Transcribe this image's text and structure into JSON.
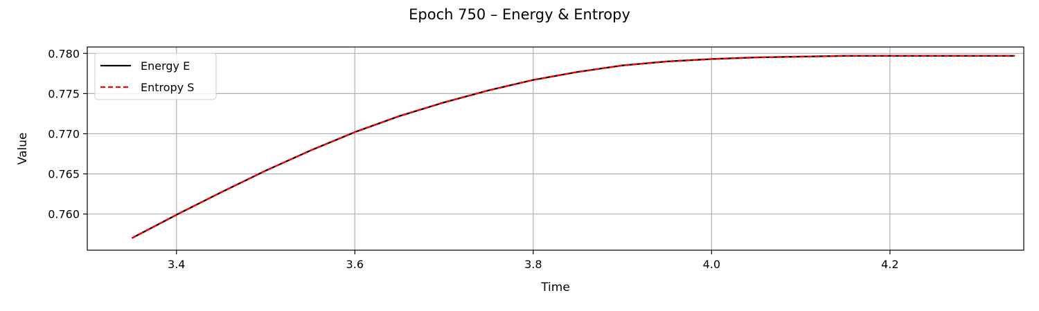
{
  "chart_data": {
    "type": "line",
    "title": "Epoch 750 – Energy & Entropy",
    "xlabel": "Time",
    "ylabel": "Value",
    "xlim": [
      3.3,
      4.35
    ],
    "ylim": [
      0.7555,
      0.7808
    ],
    "xticks": [
      3.4,
      3.6,
      3.8,
      4.0,
      4.2
    ],
    "xtick_labels": [
      "3.4",
      "3.6",
      "3.8",
      "4.0",
      "4.2"
    ],
    "yticks": [
      0.76,
      0.765,
      0.77,
      0.775,
      0.78
    ],
    "ytick_labels": [
      "0.760",
      "0.765",
      "0.770",
      "0.775",
      "0.780"
    ],
    "grid": true,
    "legend_position": "top-left",
    "x": [
      3.35,
      3.4,
      3.45,
      3.5,
      3.55,
      3.6,
      3.65,
      3.7,
      3.75,
      3.8,
      3.85,
      3.9,
      3.95,
      4.0,
      4.05,
      4.1,
      4.15,
      4.2,
      4.25,
      4.3,
      4.34
    ],
    "series": [
      {
        "name": "Energy E",
        "color": "#000000",
        "style": "solid",
        "values": [
          0.757,
          0.7599,
          0.7627,
          0.7654,
          0.7679,
          0.7702,
          0.7722,
          0.7739,
          0.7754,
          0.7767,
          0.7777,
          0.7785,
          0.779,
          0.7793,
          0.7795,
          0.7796,
          0.7797,
          0.7797,
          0.7797,
          0.7797,
          0.7797
        ]
      },
      {
        "name": "Entropy S",
        "color": "#ff0000",
        "style": "dashed",
        "values": [
          0.757,
          0.7599,
          0.7627,
          0.7654,
          0.7679,
          0.7702,
          0.7722,
          0.7739,
          0.7754,
          0.7767,
          0.7777,
          0.7785,
          0.779,
          0.7793,
          0.7795,
          0.7796,
          0.7797,
          0.7797,
          0.7797,
          0.7797,
          0.7797
        ]
      }
    ]
  }
}
